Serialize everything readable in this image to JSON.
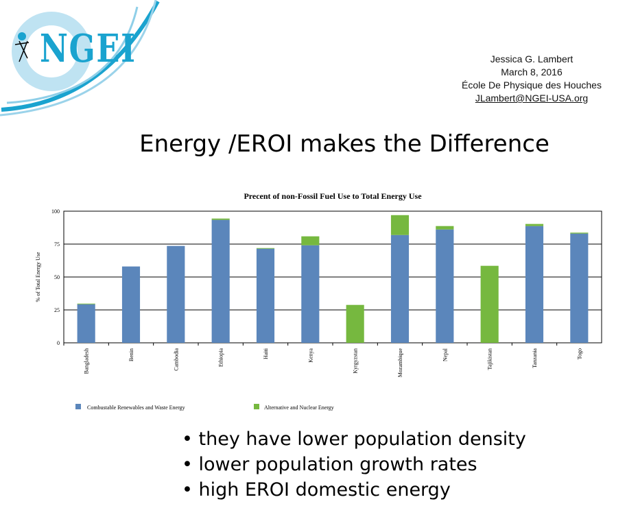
{
  "logo": {
    "text": "NGEI",
    "color": "#1aa3cf"
  },
  "author": {
    "name": "Jessica G. Lambert",
    "date": "March 8, 2016",
    "venue": "École De Physique des Houches",
    "email": "JLambert@NGEI-USA.org"
  },
  "slide_title": "Energy /EROI makes the Difference",
  "bullets": [
    "• they have lower population density",
    "• lower population growth rates",
    "• high EROI domestic energy"
  ],
  "chart_data": {
    "type": "bar",
    "stacked": true,
    "title": "Precent of non-Fossil Fuel Use to Total Energy Use",
    "xlabel": "",
    "ylabel": "% of Total Energy Use",
    "ylim": [
      0,
      100
    ],
    "yticks": [
      0,
      25,
      50,
      75,
      100
    ],
    "grid": true,
    "legend_placement": "bottom",
    "categories": [
      "Bangladesh",
      "Benin",
      "Cambodia",
      "Ethiopia",
      "Haiti",
      "Kenya",
      "Kyrgyzstan",
      "Mozambique",
      "Nepal",
      "Tajikistan",
      "Tanzania",
      "Togo"
    ],
    "series": [
      {
        "name": "Combustable Renewables and Waste Energy",
        "color": "#5b86bb",
        "values": [
          29.3,
          58.0,
          73.6,
          93.4,
          71.5,
          74.1,
          0,
          81.9,
          86.1,
          0,
          88.7,
          83.0
        ]
      },
      {
        "name": "Alternative and Nuclear Energy",
        "color": "#76b83f",
        "values": [
          0.5,
          0,
          0,
          1.0,
          0.5,
          6.8,
          28.8,
          15.1,
          2.6,
          58.5,
          1.6,
          0.7
        ]
      }
    ]
  }
}
